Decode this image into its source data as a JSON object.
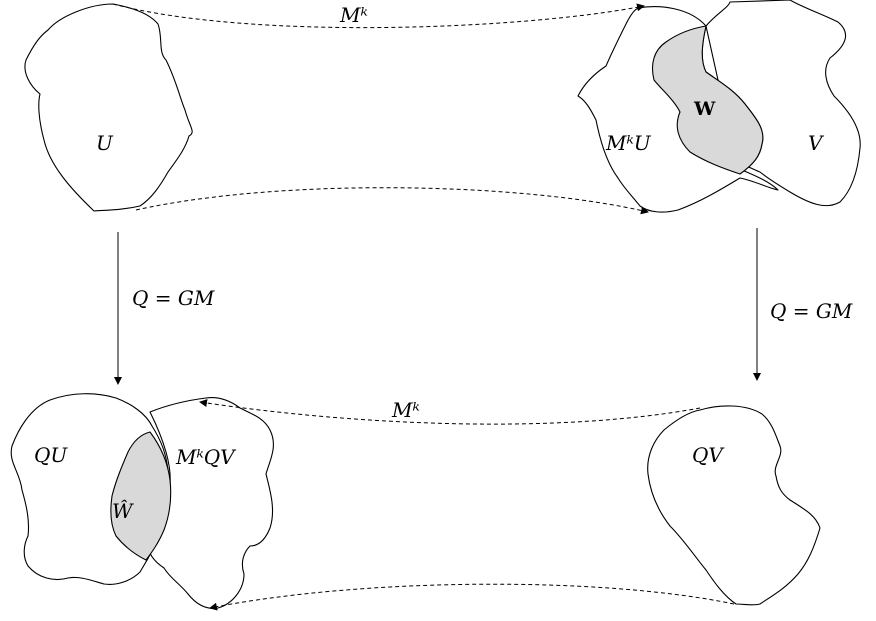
{
  "labels": {
    "U": "U",
    "MkU": "MᵏU",
    "W": "W",
    "V": "V",
    "QU": "QU",
    "MkQV": "MᵏQV",
    "W_hat": "Ŵ",
    "QV": "QV",
    "Mk_top": "Mᵏ",
    "Mk_bottom": "Mᵏ",
    "arrow_left": "Q = GM",
    "arrow_right": "Q = GM"
  },
  "colors": {
    "stroke": "#000000",
    "shaded_region": "#d9d9d9",
    "background": "#ffffff"
  }
}
